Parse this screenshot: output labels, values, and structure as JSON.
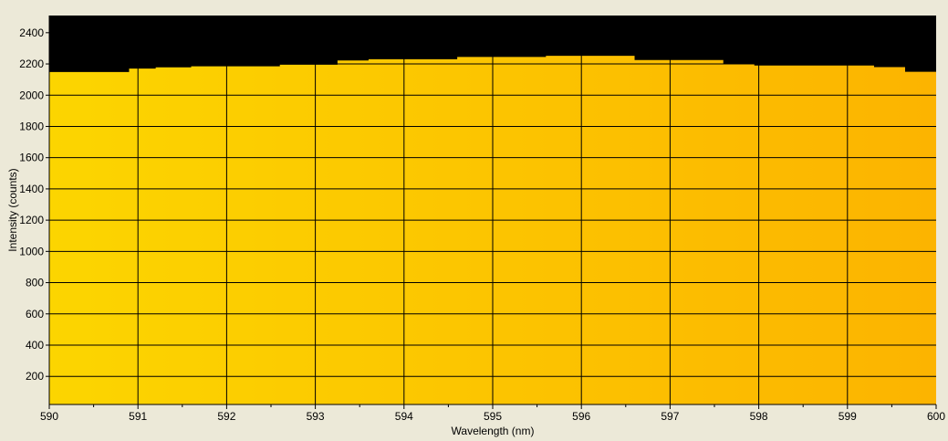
{
  "chart_data": {
    "type": "area",
    "title": "",
    "xlabel": "Wavelength (nm)",
    "ylabel": "Intensity (counts)",
    "xlim": [
      590,
      600
    ],
    "ylim": [
      20,
      2510
    ],
    "x_ticks": [
      590,
      591,
      592,
      593,
      594,
      595,
      596,
      597,
      598,
      599,
      600
    ],
    "y_ticks": [
      200,
      400,
      600,
      800,
      1000,
      1200,
      1400,
      1600,
      1800,
      2000,
      2200,
      2400
    ],
    "grid": true,
    "legend": "none",
    "series": [
      {
        "x": [
          590.0,
          590.9,
          591.2,
          591.6,
          592.6,
          593.25,
          593.6,
          594.6,
          595.6,
          596.6,
          597.6,
          597.95,
          598.3,
          599.0,
          599.3,
          599.65,
          600.0
        ],
        "y": [
          2148,
          2170,
          2178,
          2185,
          2195,
          2222,
          2230,
          2245,
          2252,
          2225,
          2200,
          2190,
          2190,
          2190,
          2180,
          2150,
          2150
        ]
      }
    ]
  },
  "colors": {
    "background": "#ece9d8",
    "plot_background": "#000000",
    "fill_left": "#fcd500",
    "fill_right": "#fcb400",
    "grid": "#000000"
  }
}
